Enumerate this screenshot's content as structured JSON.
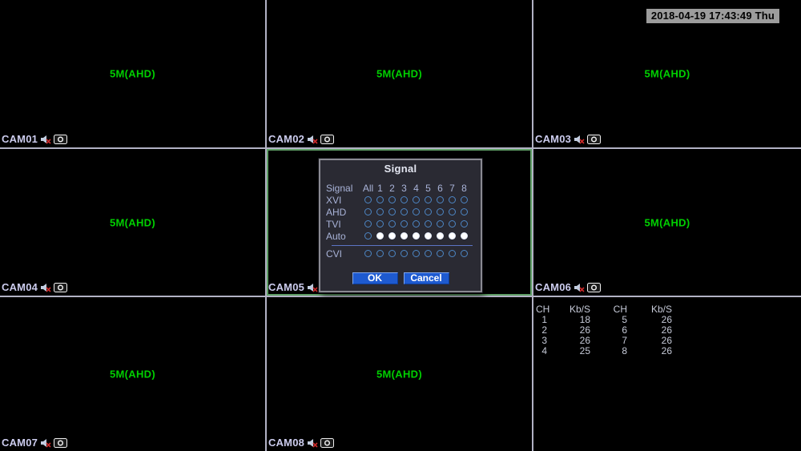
{
  "timestamp": "2018-04-19 17:43:49 Thu",
  "cameras": [
    {
      "label": "CAM01",
      "signal": "5M(AHD)"
    },
    {
      "label": "CAM02",
      "signal": "5M(AHD)"
    },
    {
      "label": "CAM03",
      "signal": "5M(AHD)"
    },
    {
      "label": "CAM04",
      "signal": "5M(AHD)"
    },
    {
      "label": "CAM05",
      "signal": null
    },
    {
      "label": "CAM06",
      "signal": "5M(AHD)"
    },
    {
      "label": "CAM07",
      "signal": "5M(AHD)"
    },
    {
      "label": "CAM08",
      "signal": "5M(AHD)"
    }
  ],
  "icons": {
    "audio_muted": "speaker-with-red-cross",
    "record": "camera-lens-in-box"
  },
  "selected_channel": "CAM05",
  "signal_dialog": {
    "title": "Signal",
    "header": [
      "Signal",
      "All",
      "1",
      "2",
      "3",
      "4",
      "5",
      "6",
      "7",
      "8"
    ],
    "rows": [
      {
        "label": "XVI",
        "all": false,
        "channels": [
          false,
          false,
          false,
          false,
          false,
          false,
          false,
          false
        ]
      },
      {
        "label": "AHD",
        "all": false,
        "channels": [
          false,
          false,
          false,
          false,
          false,
          false,
          false,
          false
        ]
      },
      {
        "label": "TVI",
        "all": false,
        "channels": [
          false,
          false,
          false,
          false,
          false,
          false,
          false,
          false
        ]
      },
      {
        "label": "Auto",
        "all": false,
        "channels": [
          true,
          true,
          true,
          true,
          true,
          true,
          true,
          true
        ]
      },
      {
        "label": "CVI",
        "all": false,
        "channels": [
          false,
          false,
          false,
          false,
          false,
          false,
          false,
          false
        ]
      }
    ],
    "ok_label": "OK",
    "cancel_label": "Cancel"
  },
  "bitrate_table": {
    "headers": [
      "CH",
      "Kb/S",
      "CH",
      "Kb/S"
    ],
    "rows": [
      [
        "1",
        "18",
        "5",
        "26"
      ],
      [
        "2",
        "26",
        "6",
        "26"
      ],
      [
        "3",
        "26",
        "7",
        "26"
      ],
      [
        "4",
        "25",
        "8",
        "26"
      ]
    ]
  },
  "colors": {
    "stream_text": "#00d000",
    "grid_line": "#b2b2c4",
    "selected_border": "#5f9f66",
    "dialog_bg": "#2a2a33",
    "dialog_text": "#a9b3d8",
    "button_blue": "#1e5ad0",
    "timestamp_bg": "#9c9c9c",
    "cam_label_text": "#ccccee"
  }
}
